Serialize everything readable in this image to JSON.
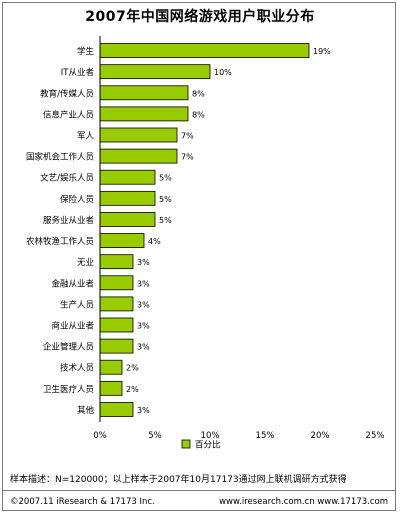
{
  "chart_data": {
    "type": "bar",
    "orientation": "horizontal",
    "title": "2007年中国网络游戏用户职业分布",
    "categories": [
      "学生",
      "IT从业者",
      "教育/传媒人员",
      "信息产业人员",
      "军人",
      "国家机会工作人员",
      "文艺/娱乐人员",
      "保险人员",
      "服务业从业者",
      "农林牧渔工作人员",
      "无业",
      "金融从业者",
      "生产人员",
      "商业从业者",
      "企业管理人员",
      "技术人员",
      "卫生医疗人员",
      "其他"
    ],
    "values": [
      19,
      10,
      8,
      8,
      7,
      7,
      5,
      5,
      5,
      4,
      3,
      3,
      3,
      3,
      3,
      2,
      2,
      3
    ],
    "value_labels": [
      "19%",
      "10%",
      "8%",
      "8%",
      "7%",
      "7%",
      "5%",
      "5%",
      "5%",
      "4%",
      "3%",
      "3%",
      "3%",
      "3%",
      "3%",
      "2%",
      "2%",
      "3%"
    ],
    "xlim": [
      0,
      25
    ],
    "x_ticks": [
      0,
      5,
      10,
      15,
      20,
      25
    ],
    "x_tick_labels": [
      "0%",
      "5%",
      "10%",
      "15%",
      "20%",
      "25%"
    ],
    "xlabel": "",
    "ylabel": "",
    "legend": {
      "label": "百分比",
      "position": "bottom"
    },
    "grid": false,
    "colors": {
      "bar": "#99cc00",
      "bar_border": "#000000"
    }
  },
  "note": "样本描述：N=120000；以上样本于2007年10月17173通过网上联机调研方式获得",
  "footer": {
    "left": "©2007.11 iResearch & 17173 Inc.",
    "right": "www.iresearch.com.cn  www.17173.com"
  }
}
